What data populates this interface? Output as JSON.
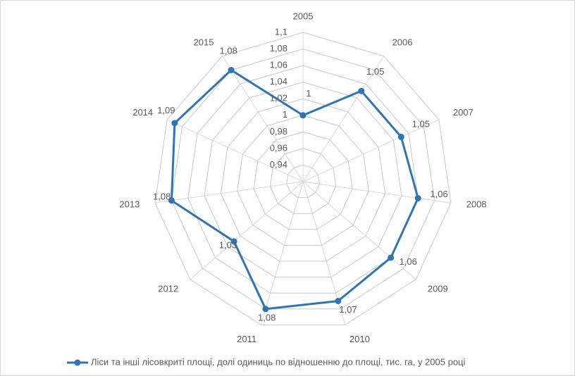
{
  "chart_data": {
    "type": "radar",
    "categories": [
      "2005",
      "2006",
      "2007",
      "2008",
      "2009",
      "2010",
      "2011",
      "2012",
      "2013",
      "2014",
      "2015"
    ],
    "series": [
      {
        "name": "Ліси та інші лісовкриті площі, долі одиниць по відношенню до площі, тис. га, у 2005 році",
        "color": "#2f75b5",
        "values": [
          1,
          1.05,
          1.05,
          1.06,
          1.06,
          1.07,
          1.08,
          1.03,
          1.08,
          1.09,
          1.08
        ],
        "value_labels": [
          "1",
          "1,05",
          "1,05",
          "1,06",
          "1,06",
          "1,07",
          "1,08",
          "1,03",
          "1,08",
          "1,09",
          "1,08"
        ]
      }
    ],
    "ylim": [
      0.92,
      1.1
    ],
    "yticks": [
      {
        "value": 0.94,
        "label": "0,94"
      },
      {
        "value": 0.96,
        "label": "0,96"
      },
      {
        "value": 0.98,
        "label": "0,98"
      },
      1,
      {
        "value": 1.02,
        "label": "1,02"
      },
      {
        "value": 1.04,
        "label": "1,04"
      },
      {
        "value": 1.06,
        "label": "1,06"
      },
      {
        "value": 1.08,
        "label": "1,08"
      },
      {
        "value": 1.1,
        "label": "1,1"
      }
    ],
    "grid": true,
    "legend": "bottom"
  }
}
